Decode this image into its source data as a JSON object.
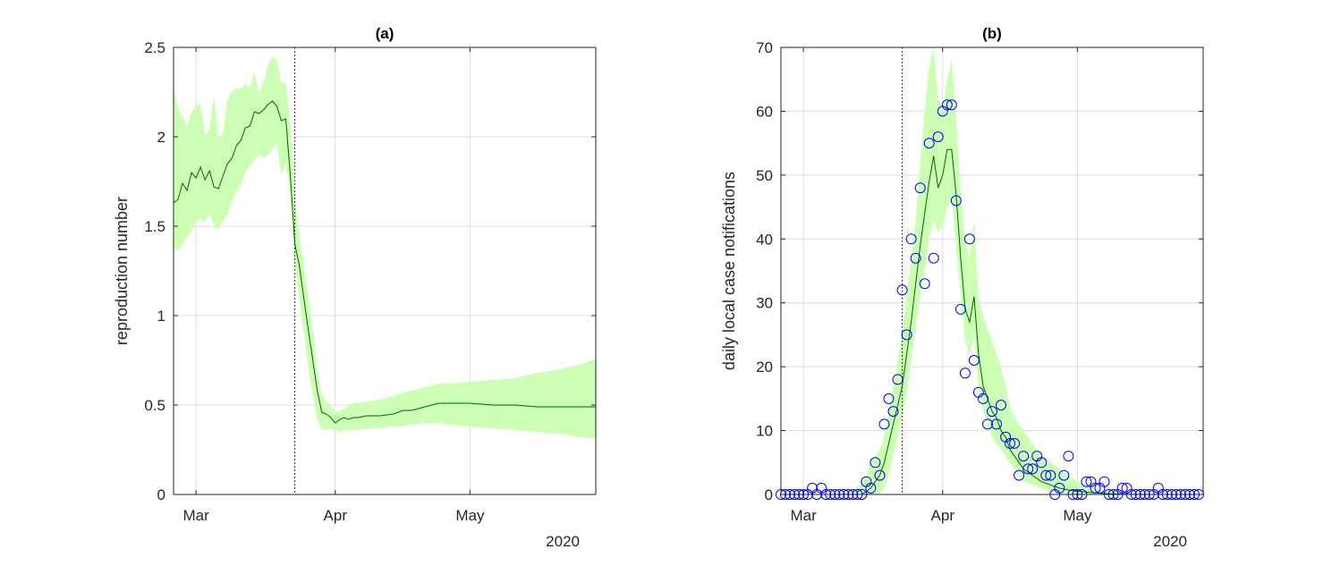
{
  "chart_data": [
    {
      "type": "line",
      "title": "(a)",
      "xlabel": "",
      "ylabel": "reproduction number",
      "year_label": "2020",
      "x_tick_labels": [
        "Mar",
        "Apr",
        "May"
      ],
      "x_tick_days": [
        4,
        35,
        65
      ],
      "xlim_days": [
        -1,
        93
      ],
      "ylim": [
        0,
        2.5
      ],
      "y_ticks": [
        0,
        0.5,
        1,
        1.5,
        2,
        2.5
      ],
      "y_tick_labels": [
        "0",
        "0.5",
        "1",
        "1.5",
        "2",
        "2.5"
      ],
      "grid": true,
      "dotted_vline_day": 26,
      "colors": {
        "line": "#006400",
        "band": "#ccffb3",
        "vline": "#000000"
      },
      "series": [
        {
          "role": "estimate",
          "x_days": [
            -1,
            0,
            1,
            2,
            3,
            4,
            5,
            6,
            7,
            8,
            9,
            10,
            11,
            12,
            13,
            14,
            15,
            16,
            17,
            18,
            19,
            20,
            21,
            22,
            23,
            24,
            25,
            26,
            27,
            28,
            29,
            30,
            31,
            32,
            33,
            34,
            35,
            36,
            37,
            38,
            39,
            40,
            42,
            45,
            48,
            50,
            52,
            55,
            58,
            60,
            65,
            70,
            75,
            80,
            85,
            90,
            93
          ],
          "median": [
            1.63,
            1.65,
            1.74,
            1.7,
            1.8,
            1.77,
            1.83,
            1.76,
            1.81,
            1.72,
            1.71,
            1.78,
            1.85,
            1.88,
            1.95,
            1.98,
            2.05,
            2.06,
            2.14,
            2.13,
            2.15,
            2.18,
            2.2,
            2.17,
            2.09,
            2.1,
            1.78,
            1.4,
            1.28,
            1.1,
            0.92,
            0.75,
            0.58,
            0.46,
            0.45,
            0.43,
            0.4,
            0.42,
            0.43,
            0.42,
            0.43,
            0.43,
            0.44,
            0.44,
            0.45,
            0.47,
            0.47,
            0.49,
            0.51,
            0.51,
            0.51,
            0.5,
            0.5,
            0.49,
            0.49,
            0.49,
            0.49
          ],
          "lower": [
            1.38,
            1.36,
            1.4,
            1.44,
            1.47,
            1.53,
            1.54,
            1.52,
            1.57,
            1.51,
            1.48,
            1.53,
            1.57,
            1.64,
            1.7,
            1.73,
            1.8,
            1.84,
            1.87,
            1.9,
            1.88,
            1.9,
            1.93,
            1.96,
            1.78,
            1.85,
            1.69,
            1.28,
            1.1,
            0.9,
            0.72,
            0.55,
            0.42,
            0.36,
            0.36,
            0.37,
            0.36,
            0.35,
            0.36,
            0.36,
            0.36,
            0.36,
            0.37,
            0.37,
            0.38,
            0.38,
            0.39,
            0.4,
            0.4,
            0.39,
            0.38,
            0.37,
            0.36,
            0.35,
            0.34,
            0.32,
            0.31
          ],
          "upper": [
            2.29,
            2.15,
            2.12,
            2.06,
            2.14,
            2.17,
            2.19,
            2.0,
            2.05,
            2.23,
            1.99,
            2.02,
            2.21,
            2.25,
            2.27,
            2.27,
            2.3,
            2.27,
            2.36,
            2.25,
            2.3,
            2.4,
            2.45,
            2.43,
            2.3,
            2.3,
            2.08,
            1.65,
            1.45,
            1.28,
            1.1,
            0.92,
            0.7,
            0.55,
            0.52,
            0.5,
            0.46,
            0.47,
            0.48,
            0.5,
            0.51,
            0.51,
            0.52,
            0.53,
            0.55,
            0.57,
            0.58,
            0.6,
            0.62,
            0.62,
            0.63,
            0.64,
            0.65,
            0.68,
            0.7,
            0.73,
            0.76
          ]
        }
      ]
    },
    {
      "type": "line",
      "title": "(b)",
      "xlabel": "",
      "ylabel": "daily local case notifications",
      "year_label": "2020",
      "x_tick_labels": [
        "Mar",
        "Apr",
        "May"
      ],
      "x_tick_days": [
        4,
        35,
        65
      ],
      "xlim_days": [
        -1,
        93
      ],
      "ylim": [
        0,
        70
      ],
      "y_ticks": [
        0,
        10,
        20,
        30,
        40,
        50,
        60,
        70
      ],
      "y_tick_labels": [
        "0",
        "10",
        "20",
        "30",
        "40",
        "50",
        "60",
        "70"
      ],
      "grid": true,
      "dotted_vline_day": 26,
      "colors": {
        "line": "#006400",
        "band": "#ccffb3",
        "marker": "#0000ff",
        "vline": "#000000"
      },
      "series": [
        {
          "role": "model",
          "x_days": [
            -1,
            5,
            10,
            15,
            17,
            18,
            19,
            20,
            21,
            22,
            23,
            24,
            25,
            26,
            27,
            28,
            29,
            30,
            31,
            32,
            33,
            34,
            35,
            36,
            37,
            38,
            39,
            40,
            41,
            42,
            43,
            44,
            45,
            46,
            47,
            48,
            49,
            50,
            51,
            52,
            53,
            55,
            57,
            59,
            61,
            63,
            65,
            68,
            72,
            78,
            85,
            93
          ],
          "median": [
            0,
            0,
            0,
            0,
            0,
            0.5,
            1,
            2,
            3,
            5,
            8,
            11,
            14,
            17,
            22,
            27,
            33,
            39,
            44,
            49,
            53,
            48,
            50,
            54,
            54,
            47,
            37,
            29,
            27,
            31,
            22,
            17,
            15,
            13,
            12,
            10,
            9,
            7,
            6,
            5,
            4,
            3,
            2,
            1.5,
            1,
            0.7,
            0.5,
            0.3,
            0.1,
            0,
            0,
            0
          ],
          "lower": [
            0,
            0,
            0,
            0,
            0,
            0,
            0,
            0,
            0,
            1,
            3,
            6,
            9,
            12,
            16,
            21,
            26,
            31,
            35,
            40,
            43,
            41,
            42,
            45,
            46,
            39,
            31,
            24,
            22,
            25,
            17,
            13,
            11,
            9,
            8,
            7,
            6,
            5,
            4,
            3,
            2,
            1.5,
            1,
            0.5,
            0.3,
            0.1,
            0,
            0,
            0,
            0,
            0,
            0
          ],
          "upper": [
            0,
            0,
            0,
            0.5,
            2,
            3,
            5,
            6,
            7,
            9,
            13,
            17,
            21,
            25,
            31,
            37,
            43,
            52,
            60,
            67,
            70,
            62,
            60,
            65,
            68,
            59,
            48,
            40,
            37,
            43,
            31,
            28,
            26,
            24,
            22,
            20,
            17,
            14,
            12,
            11,
            10,
            8,
            6,
            5,
            4,
            3,
            2,
            1,
            0.5,
            0.2,
            0,
            0
          ]
        },
        {
          "role": "observed",
          "marker": "open-circle",
          "x_days": [
            -1,
            0,
            1,
            2,
            3,
            4,
            5,
            6,
            7,
            8,
            9,
            10,
            11,
            12,
            13,
            14,
            15,
            16,
            17,
            18,
            19,
            20,
            21,
            22,
            23,
            24,
            25,
            26,
            27,
            28,
            29,
            30,
            31,
            32,
            33,
            34,
            35,
            36,
            37,
            38,
            39,
            40,
            41,
            42,
            43,
            44,
            45,
            46,
            47,
            48,
            49,
            50,
            51,
            52,
            53,
            54,
            55,
            56,
            57,
            58,
            59,
            60,
            61,
            62,
            63,
            64,
            65,
            66,
            67,
            68,
            69,
            70,
            71,
            72,
            73,
            74,
            75,
            76,
            77,
            78,
            79,
            80,
            81,
            82,
            83,
            84,
            85,
            86,
            87,
            88,
            89,
            90,
            91,
            92
          ],
          "values": [
            0,
            0,
            0,
            0,
            0,
            0,
            0,
            1,
            0,
            1,
            0,
            0,
            0,
            0,
            0,
            0,
            0,
            0,
            0,
            2,
            1,
            5,
            3,
            11,
            15,
            13,
            18,
            32,
            25,
            40,
            37,
            48,
            33,
            55,
            37,
            56,
            60,
            61,
            61,
            46,
            29,
            19,
            40,
            21,
            16,
            15,
            11,
            13,
            11,
            14,
            9,
            8,
            8,
            3,
            6,
            4,
            4,
            6,
            5,
            3,
            3,
            0,
            1,
            3,
            6,
            0,
            0,
            0,
            2,
            2,
            1,
            1,
            2,
            0,
            0,
            0,
            1,
            1,
            0,
            0,
            0,
            0,
            0,
            0,
            1,
            0,
            0,
            0,
            0,
            0,
            0,
            0,
            0,
            0
          ]
        }
      ]
    }
  ]
}
